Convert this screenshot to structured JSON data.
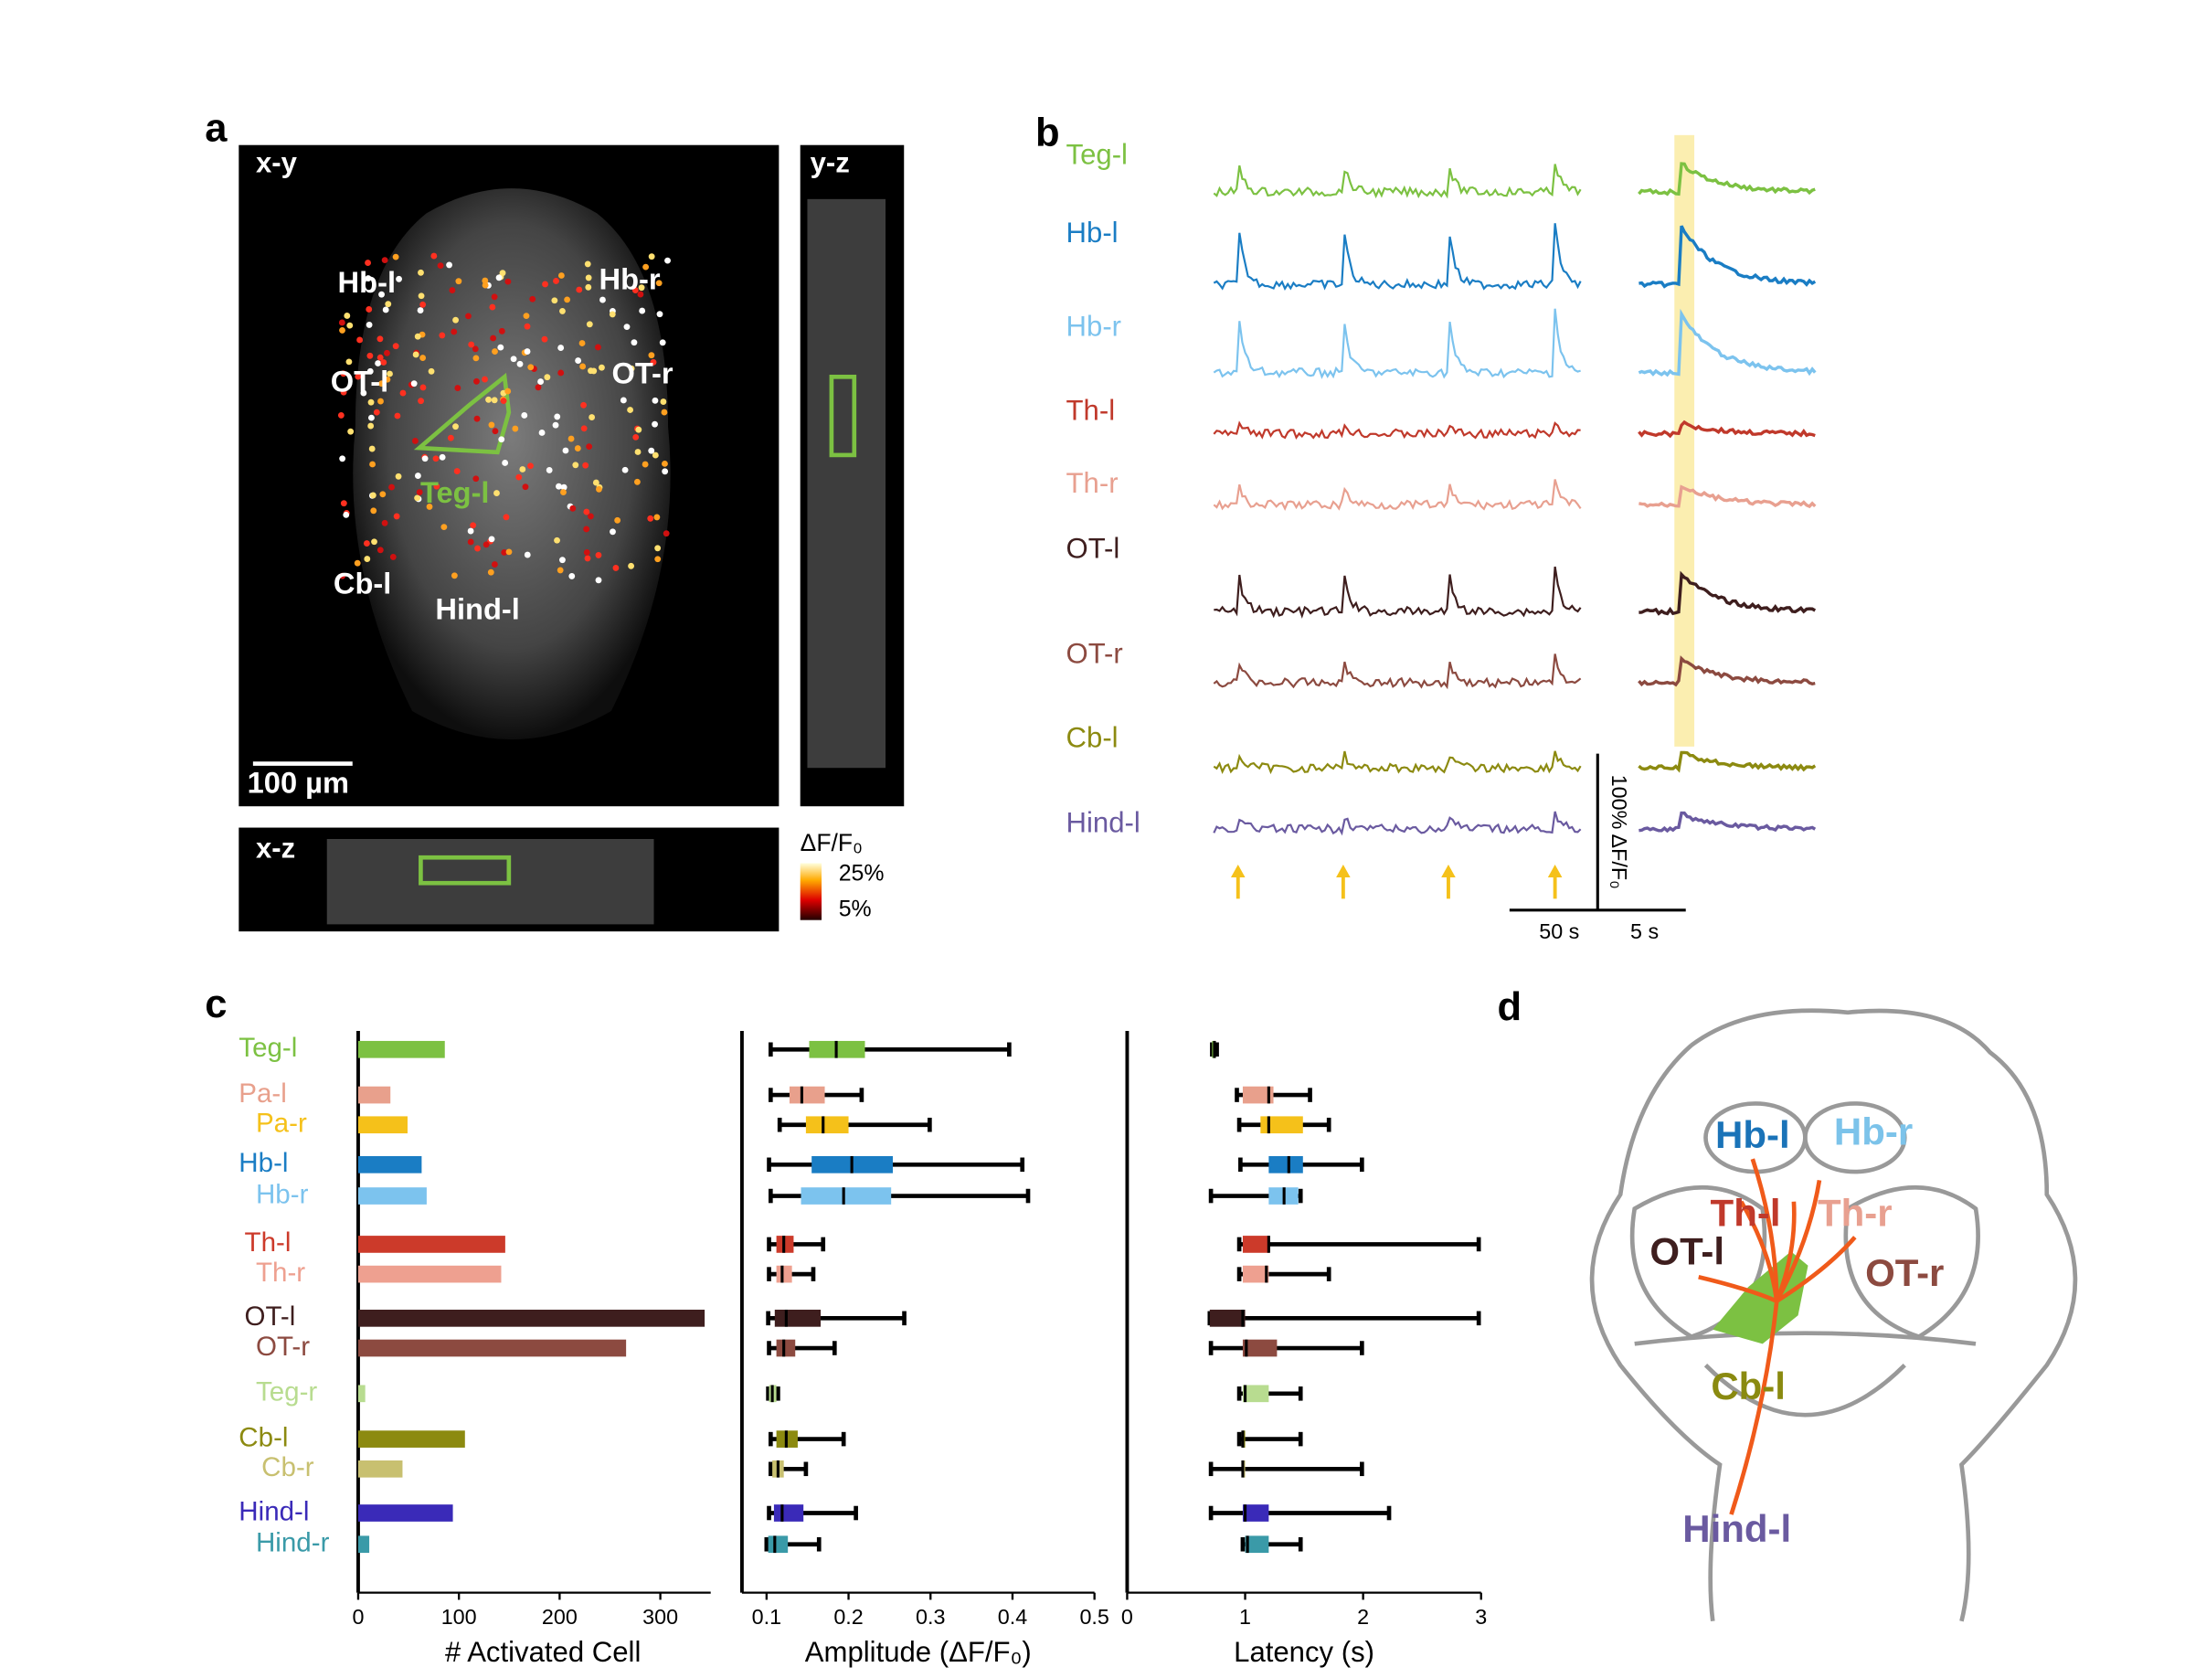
{
  "panel_labels": [
    "a",
    "b",
    "c",
    "d"
  ],
  "panel_a": {
    "views": [
      "x-y",
      "y-z",
      "x-z"
    ],
    "regions": [
      "Hb-l",
      "Hb-r",
      "OT-l",
      "OT-r",
      "Teg-l",
      "Cb-l",
      "Hind-l"
    ],
    "scale_bar": "100 µm",
    "colorbar": {
      "title": "ΔF/F₀",
      "ticks": [
        "25%",
        "5%"
      ]
    }
  },
  "panel_b": {
    "traces": [
      {
        "name": "Teg-l",
        "color": "#7cc142"
      },
      {
        "name": "Hb-l",
        "color": "#1a7dc4"
      },
      {
        "name": "Hb-r",
        "color": "#7cc3ee"
      },
      {
        "name": "Th-l",
        "color": "#c0392b"
      },
      {
        "name": "Th-r",
        "color": "#e8a090"
      },
      {
        "name": "OT-l",
        "color": "#3e1e1e"
      },
      {
        "name": "OT-r",
        "color": "#8c4a40"
      },
      {
        "name": "Cb-l",
        "color": "#8c8a10"
      },
      {
        "name": "Hind-l",
        "color": "#6a5aa0"
      }
    ],
    "time_scale_long": "50 s",
    "time_scale_short": "5 s",
    "amplitude_scale": "100% ΔF/F₀"
  },
  "chart_data": [
    {
      "type": "bar",
      "orientation": "horizontal",
      "categories": [
        "Teg-l",
        "Pa-l",
        "Pa-r",
        "Hb-l",
        "Hb-r",
        "Th-l",
        "Th-r",
        "OT-l",
        "OT-r",
        "Teg-r",
        "Cb-l",
        "Cb-r",
        "Hind-l",
        "Hind-r"
      ],
      "colors": [
        "#7cc142",
        "#e8a08c",
        "#f5c11a",
        "#1a7dc4",
        "#7cc3ee",
        "#cc3a2a",
        "#eea090",
        "#3e1e1e",
        "#8c4a40",
        "#b8dc90",
        "#8c8a10",
        "#c8c070",
        "#3a2ab8",
        "#3a9aa8"
      ],
      "values": [
        86,
        32,
        49,
        63,
        68,
        146,
        142,
        344,
        266,
        7,
        106,
        44,
        94,
        11
      ],
      "xlim": [
        0,
        350
      ],
      "xticks": [
        0,
        100,
        200,
        300
      ],
      "xlabel": "# Activated Cell"
    },
    {
      "type": "box",
      "orientation": "horizontal",
      "min": [
        0.105,
        0.105,
        0.116,
        0.103,
        0.105,
        0.103,
        0.103,
        0.102,
        0.103,
        0.102,
        0.105,
        0.105,
        0.103,
        0.1
      ],
      "q1": [
        0.152,
        0.128,
        0.148,
        0.155,
        0.142,
        0.112,
        0.112,
        0.11,
        0.112,
        0.103,
        0.112,
        0.107,
        0.109,
        0.102
      ],
      "median": [
        0.185,
        0.143,
        0.169,
        0.204,
        0.194,
        0.121,
        0.119,
        0.124,
        0.121,
        0.107,
        0.124,
        0.114,
        0.119,
        0.11
      ],
      "q3": [
        0.22,
        0.171,
        0.2,
        0.254,
        0.252,
        0.133,
        0.131,
        0.166,
        0.135,
        0.112,
        0.138,
        0.121,
        0.145,
        0.126
      ],
      "max": [
        0.396,
        0.216,
        0.299,
        0.412,
        0.419,
        0.169,
        0.157,
        0.268,
        0.183,
        0.114,
        0.194,
        0.148,
        0.209,
        0.164
      ],
      "xlim": [
        0.07,
        0.5
      ],
      "xticks": [
        0.1,
        0.2,
        0.3,
        0.4,
        0.5
      ],
      "xlabel": "Amplitude (ΔF/F₀)"
    },
    {
      "type": "box",
      "orientation": "horizontal",
      "min": [
        0.72,
        0.93,
        0.95,
        0.96,
        0.71,
        0.95,
        0.95,
        0.7,
        0.71,
        0.95,
        0.95,
        0.71,
        0.71,
        0.98
      ],
      "q1": [
        0.72,
        0.98,
        1.13,
        1.2,
        1.2,
        0.98,
        0.98,
        0.7,
        0.98,
        0.98,
        0.98,
        0.98,
        0.98,
        1.0
      ],
      "median": [
        0.74,
        1.2,
        1.2,
        1.37,
        1.33,
        1.2,
        1.18,
        0.98,
        1.01,
        1.0,
        0.98,
        0.98,
        1.0,
        1.02
      ],
      "q3": [
        0.75,
        1.24,
        1.49,
        1.49,
        1.45,
        1.2,
        1.2,
        1.0,
        1.27,
        1.2,
        1.0,
        1.0,
        1.2,
        1.2
      ],
      "max": [
        0.76,
        1.55,
        1.71,
        1.99,
        1.47,
        2.98,
        1.71,
        2.98,
        1.99,
        1.47,
        1.47,
        1.99,
        2.22,
        1.47
      ],
      "xlim": [
        0,
        3
      ],
      "xticks": [
        0,
        1,
        2,
        3
      ],
      "xlabel": "Latency (s)"
    }
  ],
  "panel_d": {
    "labels": [
      {
        "text": "Hb-l",
        "color": "#1a73b8"
      },
      {
        "text": "Hb-r",
        "color": "#7cc3ea"
      },
      {
        "text": "Th-l",
        "color": "#c0392b"
      },
      {
        "text": "Th-r",
        "color": "#e8a090"
      },
      {
        "text": "OT-l",
        "color": "#3e1e1e"
      },
      {
        "text": "OT-r",
        "color": "#8c4a40"
      },
      {
        "text": "Cb-l",
        "color": "#8a8a10"
      },
      {
        "text": "Hind-l",
        "color": "#6a5aa0"
      }
    ]
  }
}
